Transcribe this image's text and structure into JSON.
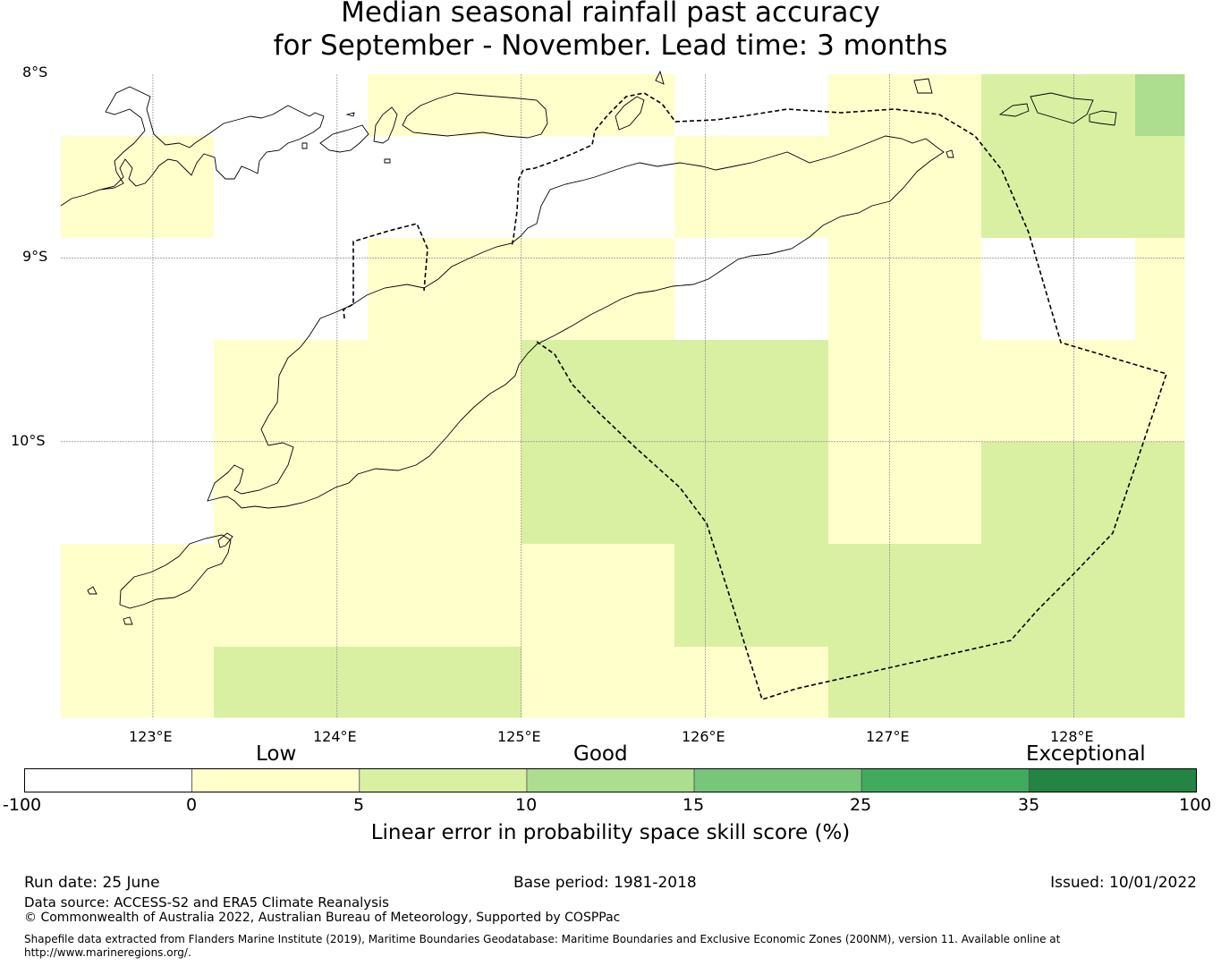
{
  "title": {
    "line1": "Median seasonal rainfall past accuracy",
    "line2": "for September - November. Lead time: 3 months"
  },
  "map": {
    "lat_labels": [
      "8°S",
      "9°S",
      "10°S"
    ],
    "lon_labels": [
      "123°E",
      "124°E",
      "125°E",
      "126°E",
      "127°E",
      "128°E"
    ],
    "lat_range": [
      -11.5,
      -8.0
    ],
    "lon_range": [
      122.5,
      128.6
    ],
    "cell_size_deg": [
      0.83,
      0.56
    ],
    "colors": {
      "below_0": "#ffffff",
      "0_5": "#ffffcc",
      "5_10": "#d9f0a3",
      "10_15": "#addd8e"
    },
    "skill_grid_categories": [
      [
        "none",
        "none",
        "0_5",
        "0_5",
        "none",
        "0_5",
        "5_10",
        "10_15"
      ],
      [
        "0_5",
        "none",
        "none",
        "none",
        "0_5",
        "0_5",
        "5_10",
        "5_10"
      ],
      [
        "none",
        "none",
        "0_5",
        "0_5",
        "none",
        "0_5",
        "none",
        "0_5"
      ],
      [
        "none",
        "0_5",
        "0_5",
        "5_10",
        "5_10",
        "0_5",
        "0_5",
        "0_5"
      ],
      [
        "none",
        "0_5",
        "0_5",
        "5_10",
        "5_10",
        "0_5",
        "5_10",
        "5_10"
      ],
      [
        "0_5",
        "0_5",
        "0_5",
        "0_5",
        "5_10",
        "5_10",
        "5_10",
        "5_10"
      ],
      [
        "0_5",
        "5_10",
        "5_10",
        "0_5",
        "0_5",
        "5_10",
        "5_10",
        "5_10"
      ]
    ]
  },
  "colorbar": {
    "categories": [
      "Low",
      "Good",
      "Exceptional"
    ],
    "ticks": [
      "-100",
      "0",
      "5",
      "10",
      "15",
      "25",
      "35",
      "100"
    ],
    "colors": [
      "#ffffff",
      "#ffffcc",
      "#d9f0a3",
      "#addd8e",
      "#78c679",
      "#41ab5d",
      "#238443"
    ],
    "label": "Linear error in probability space skill score (%)"
  },
  "footer": {
    "run_date": "Run date: 25 June",
    "base_period": "Base period: 1981-2018",
    "issued": "Issued: 10/01/2022",
    "data_source": "Data source: ACCESS-S2 and ERA5 Climate Reanalysis",
    "copyright": "© Commonwealth of Australia 2022, Australian Bureau of Meteorology, Supported by COSPPac",
    "shapefile_line1": "Shapefile data extracted from Flanders Marine Institute (2019), Maritime Boundaries Geodatabase: Maritime Boundaries and Exclusive Economic Zones (200NM), version 11. Available online at",
    "shapefile_line2": "http://www.marineregions.org/."
  }
}
